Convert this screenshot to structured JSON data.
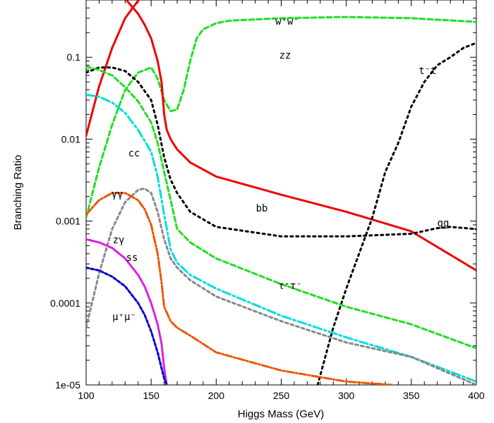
{
  "chart_data": {
    "type": "line",
    "title": "",
    "xlabel": "Higgs Mass (GeV)",
    "ylabel": "Branching Ratio",
    "xlim": [
      100,
      400
    ],
    "ylim": [
      1e-05,
      1
    ],
    "yscale": "log",
    "grid": false,
    "x_ticks": [
      "100",
      "150",
      "200",
      "250",
      "300",
      "350",
      "400"
    ],
    "y_ticks": [
      "1e-05",
      "0.0001",
      "0.001",
      "0.01",
      "0.1"
    ],
    "series": [
      {
        "label": "W+W-",
        "label_text": "w⁺w⁻",
        "label_at": [
          407,
          35
        ],
        "color": "#ee0000",
        "dash": "",
        "width": 3,
        "x": [
          100,
          110,
          120,
          130,
          140,
          150,
          155,
          160,
          165,
          170,
          175,
          180,
          190,
          200,
          250,
          300,
          350,
          400
        ],
        "y": [
          0.011,
          0.044,
          0.13,
          0.3,
          0.49,
          0.69,
          0.82,
          0.9,
          0.96,
          0.97,
          0.96,
          0.93,
          0.83,
          0.76,
          0.71,
          0.69,
          0.63,
          0.56
        ]
      },
      {
        "label": "ZZ",
        "label_text": "zz",
        "label_at": [
          404,
          83
        ],
        "color": "#22dd22",
        "dash": "7,4",
        "width": 3,
        "x": [
          100,
          110,
          120,
          130,
          140,
          150,
          155,
          160,
          165,
          170,
          175,
          180,
          185,
          190,
          200,
          210,
          250,
          300,
          350,
          400
        ],
        "y": [
          0.0011,
          0.0045,
          0.015,
          0.04,
          0.065,
          0.075,
          0.055,
          0.03,
          0.022,
          0.023,
          0.04,
          0.09,
          0.17,
          0.22,
          0.26,
          0.28,
          0.3,
          0.31,
          0.3,
          0.27
        ]
      },
      {
        "label": "b-bbar",
        "label_text": "bb",
        "label_at": [
          371,
          300
        ],
        "color": "#ee0000",
        "dash": "",
        "width": 3,
        "x": [
          100,
          110,
          120,
          130,
          140,
          145,
          150,
          155,
          158,
          160,
          162,
          165,
          170,
          180,
          200,
          250,
          300,
          350,
          400
        ],
        "y": [
          0.8,
          0.76,
          0.68,
          0.52,
          0.34,
          0.25,
          0.17,
          0.09,
          0.05,
          0.02,
          0.013,
          0.01,
          0.0075,
          0.0052,
          0.0035,
          0.0021,
          0.0013,
          0.00075,
          0.00025
        ]
      },
      {
        "label": "t-tbar",
        "label_text": "t⁻t",
        "label_at": [
          606,
          105
        ],
        "color": "#000000",
        "dash": "3,5",
        "width": 3,
        "x": [
          278,
          290,
          300,
          320,
          330,
          340,
          345,
          350,
          360,
          370,
          380,
          390,
          400
        ],
        "y": [
          1e-05,
          5e-05,
          0.00015,
          0.0011,
          0.004,
          0.009,
          0.015,
          0.025,
          0.05,
          0.08,
          0.1,
          0.13,
          0.15
        ]
      },
      {
        "label": "gg",
        "label_text": "gg",
        "label_at": [
          628,
          321
        ],
        "color": "#000000",
        "dash": "3,5",
        "width": 3,
        "x": [
          100,
          110,
          120,
          130,
          140,
          150,
          155,
          160,
          165,
          170,
          180,
          200,
          250,
          300,
          350,
          370,
          380,
          400
        ],
        "y": [
          0.065,
          0.075,
          0.075,
          0.068,
          0.05,
          0.03,
          0.015,
          0.006,
          0.0032,
          0.0022,
          0.0013,
          0.00085,
          0.00065,
          0.00065,
          0.0007,
          0.00082,
          0.00085,
          0.0008
        ]
      },
      {
        "label": "c-cbar",
        "label_text": "cc",
        "label_at": [
          190,
          222
        ],
        "color": "#00dddd",
        "dash": "12,4,3,4",
        "width": 3,
        "x": [
          100,
          110,
          120,
          130,
          140,
          150,
          155,
          160,
          165,
          170,
          180,
          200,
          250,
          300,
          350,
          400
        ],
        "y": [
          0.035,
          0.033,
          0.028,
          0.021,
          0.013,
          0.007,
          0.0035,
          0.0012,
          0.00045,
          0.00031,
          0.00022,
          0.00015,
          7e-05,
          3.8e-05,
          2.2e-05,
          1.1e-05
        ]
      },
      {
        "label": "tau+tau-",
        "label_text": "τ⁺τ⁻",
        "label_at": [
          411,
          410
        ],
        "color": "#22dd22",
        "dash": "7,4",
        "width": 3,
        "x": [
          100,
          110,
          120,
          130,
          140,
          150,
          155,
          160,
          165,
          170,
          180,
          200,
          250,
          300,
          350,
          400
        ],
        "y": [
          0.077,
          0.07,
          0.06,
          0.043,
          0.029,
          0.016,
          0.009,
          0.004,
          0.0018,
          0.0008,
          0.00055,
          0.00035,
          0.00017,
          9e-05,
          5.5e-05,
          2.8e-05
        ]
      },
      {
        "label": "Z-gamma",
        "label_text": "zγ",
        "label_at": [
          168,
          345
        ],
        "color": "#888888",
        "dash": "4,4",
        "width": 3,
        "x": [
          100,
          110,
          120,
          130,
          140,
          145,
          150,
          155,
          160,
          165,
          170,
          180,
          200,
          250,
          300,
          350,
          400
        ],
        "y": [
          5e-05,
          0.00023,
          0.0008,
          0.0017,
          0.0024,
          0.0025,
          0.0022,
          0.0013,
          0.0006,
          0.00035,
          0.00027,
          0.00019,
          0.00012,
          6e-05,
          3.3e-05,
          2.2e-05,
          1e-05
        ]
      },
      {
        "label": "gamma-gamma",
        "label_text": "γγ",
        "label_at": [
          166,
          280
        ],
        "color": "#ee5500",
        "dash": "10,3,2,3",
        "width": 3,
        "x": [
          100,
          110,
          120,
          130,
          140,
          145,
          150,
          155,
          158,
          160,
          165,
          170,
          180,
          200,
          250,
          300,
          335
        ],
        "y": [
          0.0012,
          0.0018,
          0.0022,
          0.0022,
          0.0018,
          0.0014,
          0.0009,
          0.0004,
          0.00018,
          9e-05,
          6e-05,
          5e-05,
          4e-05,
          2.5e-05,
          1.5e-05,
          1.1e-05,
          1e-05
        ]
      },
      {
        "label": "s-sbar",
        "label_text": "ss",
        "label_at": [
          187,
          370
        ],
        "color": "#dd22dd",
        "dash": "",
        "width": 3,
        "x": [
          100,
          110,
          120,
          130,
          140,
          145,
          150,
          155,
          158,
          160,
          162
        ],
        "y": [
          0.0006,
          0.00055,
          0.00047,
          0.00035,
          0.00022,
          0.00016,
          0.0001,
          5.5e-05,
          3.2e-05,
          1.6e-05,
          1e-05
        ]
      },
      {
        "label": "mu+mu-",
        "label_text": "μ⁺μ⁻",
        "label_at": [
          176,
          454
        ],
        "color": "#0000cc",
        "dash": "4,3",
        "width": 3,
        "x": [
          100,
          110,
          120,
          130,
          140,
          145,
          150,
          155,
          158,
          160,
          162
        ],
        "y": [
          0.00027,
          0.00025,
          0.00021,
          0.00016,
          0.0001,
          7.2e-05,
          4.5e-05,
          2.5e-05,
          1.6e-05,
          1.2e-05,
          1e-05
        ]
      }
    ]
  }
}
